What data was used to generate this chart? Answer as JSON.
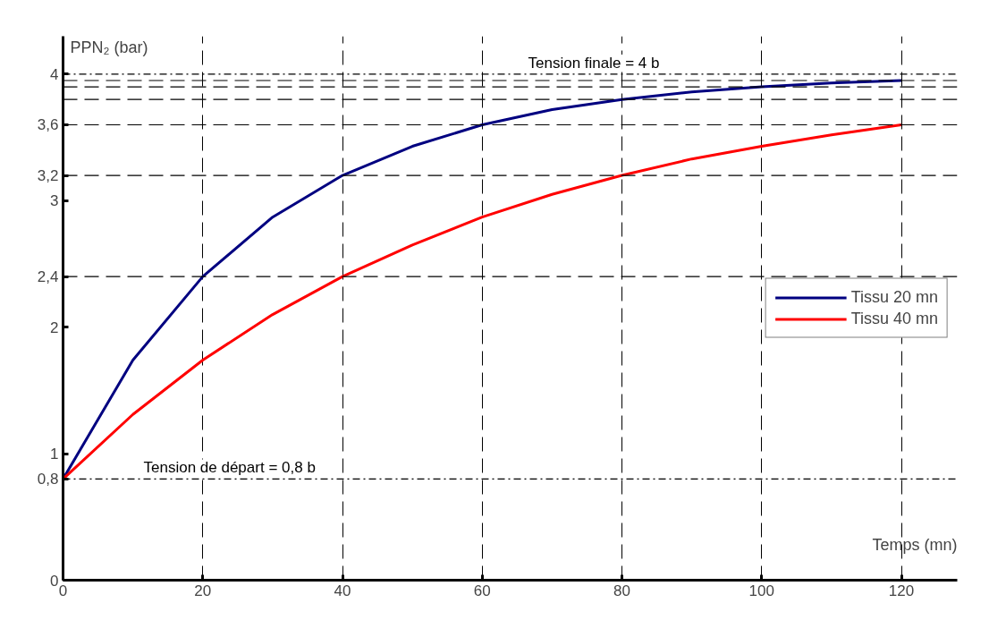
{
  "chart_data": {
    "type": "line",
    "xlabel": "Temps (mn)",
    "ylabel": "PPN₂ (bar)",
    "x": [
      0,
      10,
      20,
      30,
      40,
      50,
      60,
      70,
      80,
      90,
      100,
      110,
      120
    ],
    "series": [
      {
        "name": "Tissu 20 mn",
        "color": "#000080",
        "values": [
          0.8,
          1.74,
          2.4,
          2.87,
          3.2,
          3.43,
          3.6,
          3.72,
          3.8,
          3.86,
          3.9,
          3.93,
          3.95
        ]
      },
      {
        "name": "Tissu 40 mn",
        "color": "#ff0000",
        "values": [
          0.8,
          1.31,
          1.74,
          2.1,
          2.4,
          2.65,
          2.87,
          3.05,
          3.2,
          3.33,
          3.43,
          3.52,
          3.6
        ]
      }
    ],
    "xlim": [
      0,
      128
    ],
    "ylim": [
      0,
      4.3
    ],
    "xticks": [
      0,
      20,
      40,
      60,
      80,
      100,
      120
    ],
    "yticks": [
      0,
      {
        "value": 0.8,
        "label": "0,8"
      },
      1,
      2,
      {
        "value": 2.4,
        "label": "2,4"
      },
      3,
      {
        "value": 3.2,
        "label": "3,2"
      },
      {
        "value": 3.6,
        "label": "3,6"
      },
      4
    ],
    "ref_lines": [
      {
        "axis": "y",
        "value": 4,
        "label": "Tension finale = 4 b",
        "line_style": "dashdot",
        "color": "#000000"
      },
      {
        "axis": "y",
        "value": 0.8,
        "label": "Tension de départ = 0,8 b",
        "line_style": "dashdot",
        "color": "#000000"
      },
      {
        "axis": "y",
        "value": 3.95,
        "line_style": "dashed",
        "color": "#000000"
      },
      {
        "axis": "y",
        "value": 3.9,
        "line_style": "dashed",
        "color": "#000000"
      },
      {
        "axis": "y",
        "value": 3.8,
        "line_style": "dashed",
        "color": "#000000"
      },
      {
        "axis": "y",
        "value": 3.6,
        "line_style": "dashed",
        "color": "#000000"
      },
      {
        "axis": "y",
        "value": 3.2,
        "line_style": "dashed",
        "color": "#000000"
      },
      {
        "axis": "y",
        "value": 2.4,
        "line_style": "dashed",
        "color": "#000000"
      }
    ],
    "grid": "x",
    "legend": "right",
    "line_style": "solid"
  }
}
